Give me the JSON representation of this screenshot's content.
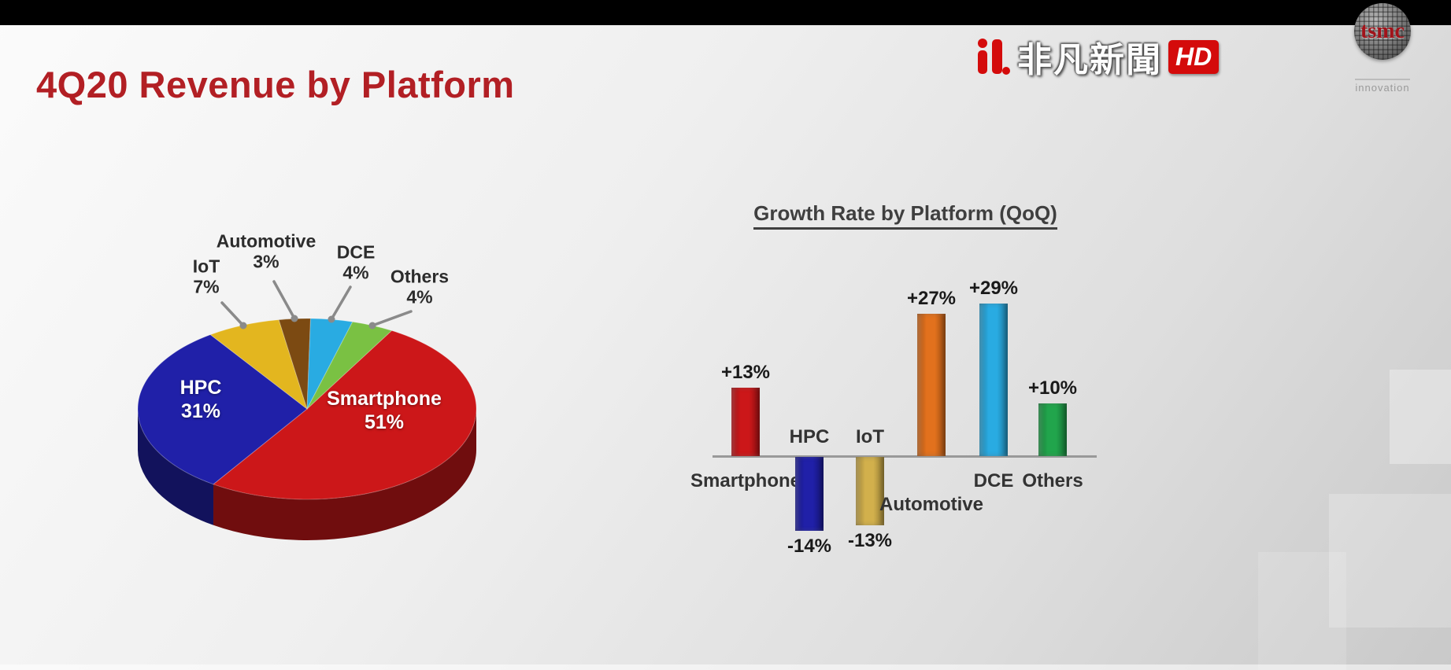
{
  "slide": {
    "title": "4Q20 Revenue by Platform"
  },
  "overlay": {
    "news_name": "非凡新聞",
    "news_hd": "HD",
    "tsmc_logo_text": "tsmc",
    "tsmc_tagline": "innovation"
  },
  "colors": {
    "title_red": "#b21f24",
    "leader_line_gray": "#8a8a8a",
    "baseline_gray": "#999999"
  },
  "chart_data": [
    {
      "type": "pie",
      "title": "4Q20 Revenue by Platform",
      "style": "3d",
      "labels": [
        "Smartphone",
        "HPC",
        "IoT",
        "Automotive",
        "DCE",
        "Others"
      ],
      "values": [
        51,
        31,
        7,
        3,
        4,
        4
      ],
      "unit": "%",
      "label_values": [
        "51%",
        "31%",
        "7%",
        "3%",
        "4%",
        "4%"
      ],
      "colors": [
        "#cc1719",
        "#2020a8",
        "#e3b61f",
        "#7c4a12",
        "#29abe2",
        "#7ac143"
      ],
      "legend": "labels-with-leader-lines"
    },
    {
      "type": "bar",
      "title": "Growth Rate by Platform (QoQ)",
      "categories": [
        "Smartphone",
        "HPC",
        "IoT",
        "Automotive",
        "DCE",
        "Others"
      ],
      "values": [
        13,
        -14,
        -13,
        27,
        29,
        10
      ],
      "value_labels": [
        "+13%",
        "-14%",
        "-13%",
        "+27%",
        "+29%",
        "+10%"
      ],
      "colors": [
        "#cc1719",
        "#2020a8",
        "#d2b04c",
        "#e2711d",
        "#29abe2",
        "#21a54c"
      ],
      "xlabel": "",
      "ylabel": "",
      "ylim": [
        -20,
        35
      ],
      "baseline": 0,
      "grid": false,
      "legend_position": "none"
    }
  ]
}
